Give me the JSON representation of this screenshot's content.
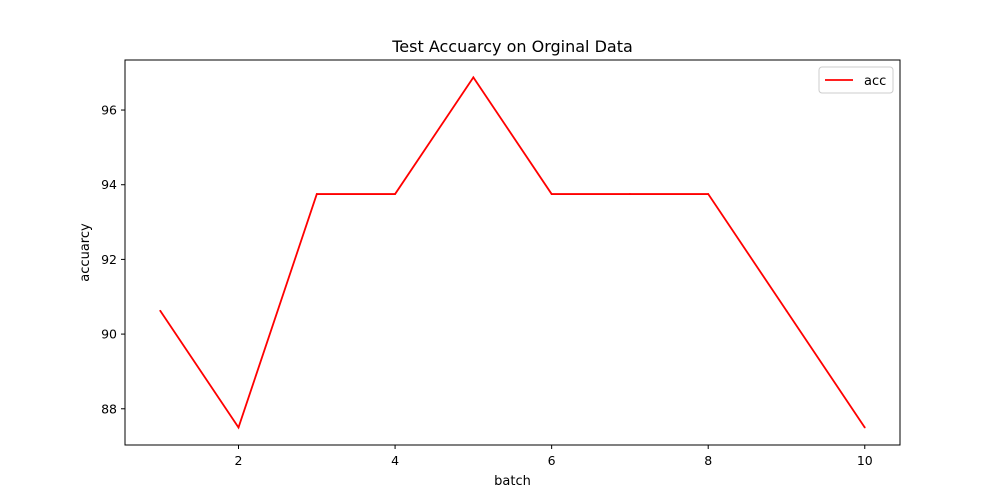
{
  "chart_data": {
    "type": "line",
    "title": "Test Accuarcy on Orginal Data",
    "xlabel": "batch",
    "ylabel": "accuarcy",
    "x": [
      1,
      2,
      3,
      4,
      5,
      6,
      7,
      8,
      9,
      10
    ],
    "series": [
      {
        "name": "acc",
        "color": "#ff0000",
        "values": [
          90.625,
          87.5,
          93.75,
          93.75,
          96.875,
          93.75,
          93.75,
          93.75,
          90.625,
          87.5
        ]
      }
    ],
    "xlim": [
      0.55,
      10.45
    ],
    "ylim": [
      87.03,
      97.34
    ],
    "xticks": [
      2,
      4,
      6,
      8,
      10
    ],
    "yticks": [
      88,
      90,
      92,
      94,
      96
    ],
    "grid": false,
    "legend_position": "top-right"
  }
}
